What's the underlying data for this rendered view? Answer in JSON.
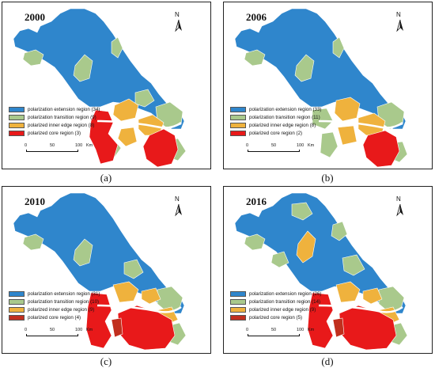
{
  "colors": {
    "extension": "#2f86cc",
    "transition": "#a9c98c",
    "inner_edge": "#efb23d",
    "core": "#e8191a",
    "core_dark": "#c12f1e"
  },
  "north_label": "N",
  "scale": {
    "t0": "0",
    "t1": "50",
    "t2": "100",
    "unit": "Km"
  },
  "panels": [
    {
      "year": "2000",
      "caption": "(a)",
      "legend": [
        {
          "label": "polarization extension region (34)",
          "color": "#2f86cc"
        },
        {
          "label": "polarization transition region (9)",
          "color": "#a9c98c"
        },
        {
          "label": "polarized inner edge region (8)",
          "color": "#efb23d"
        },
        {
          "label": "polarized core region (3)",
          "color": "#e8191a"
        }
      ]
    },
    {
      "year": "2006",
      "caption": "(b)",
      "legend": [
        {
          "label": "polarization extension region (33)",
          "color": "#2f86cc"
        },
        {
          "label": "polarization transition region (11)",
          "color": "#a9c98c"
        },
        {
          "label": "polarized inner edge region (8)",
          "color": "#efb23d"
        },
        {
          "label": "polarized core region (2)",
          "color": "#e8191a"
        }
      ]
    },
    {
      "year": "2010",
      "caption": "(c)",
      "legend": [
        {
          "label": "polarization extension region (31)",
          "color": "#2f86cc"
        },
        {
          "label": "polarization transition region (10)",
          "color": "#a9c98c"
        },
        {
          "label": "polarized inner edge region (9)",
          "color": "#efb23d"
        },
        {
          "label": "polarized core region (4)",
          "color": "#c12f1e"
        }
      ]
    },
    {
      "year": "2016",
      "caption": "(d)",
      "legend": [
        {
          "label": "polarization extension region (26)",
          "color": "#2f86cc"
        },
        {
          "label": "polarization transition region (14)",
          "color": "#a9c98c"
        },
        {
          "label": "polarized inner edge region (9)",
          "color": "#efb23d"
        },
        {
          "label": "polarized core region (5)",
          "color": "#c12f1e"
        }
      ]
    }
  ]
}
